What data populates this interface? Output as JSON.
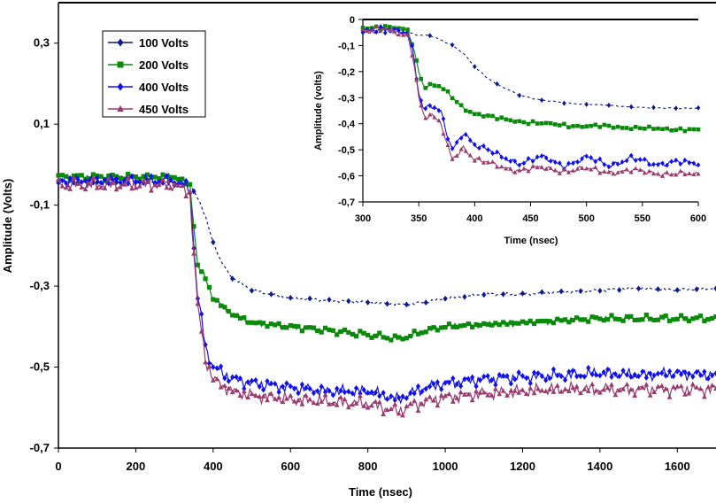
{
  "chart_data": [
    {
      "type": "line",
      "name": "main",
      "title": "",
      "xlabel": "Time (nsec)",
      "ylabel": "Amplitude (Volts)",
      "xlim": [
        0,
        1700
      ],
      "ylim": [
        -0.7,
        0.4
      ],
      "x_ticks": [
        0,
        200,
        400,
        600,
        800,
        1000,
        1200,
        1400,
        1600
      ],
      "x_tick_labels": [
        "0",
        "200",
        "400",
        "600",
        "800",
        "1000",
        "1200",
        "1400",
        "1600"
      ],
      "y_ticks": [
        0.3,
        0.1,
        -0.1,
        -0.3,
        -0.5,
        -0.7
      ],
      "y_tick_labels": [
        "0,3",
        "0,1",
        "-0,1",
        "-0,3",
        "-0,5",
        "-0,7"
      ],
      "legend_position": "top-left",
      "series": [
        {
          "name": "100 Volts",
          "color": "#0b1a8c",
          "marker": "diamond",
          "x": [
            0,
            100,
            200,
            300,
            340,
            360,
            380,
            400,
            420,
            450,
            500,
            600,
            700,
            800,
            880,
            900,
            950,
            1000,
            1100,
            1200,
            1300,
            1400,
            1500,
            1600,
            1700
          ],
          "y": [
            -0.045,
            -0.045,
            -0.045,
            -0.045,
            -0.05,
            -0.08,
            -0.13,
            -0.19,
            -0.24,
            -0.28,
            -0.31,
            -0.33,
            -0.335,
            -0.34,
            -0.345,
            -0.345,
            -0.34,
            -0.33,
            -0.32,
            -0.32,
            -0.315,
            -0.31,
            -0.305,
            -0.31,
            -0.305
          ]
        },
        {
          "name": "200 Volts",
          "color": "#0a8a0a",
          "marker": "square",
          "x": [
            0,
            100,
            200,
            300,
            340,
            350,
            360,
            380,
            400,
            450,
            500,
            600,
            700,
            800,
            880,
            900,
            950,
            1000,
            1100,
            1200,
            1300,
            1400,
            1500,
            1600,
            1700
          ],
          "y": [
            -0.03,
            -0.03,
            -0.03,
            -0.03,
            -0.05,
            -0.15,
            -0.25,
            -0.28,
            -0.33,
            -0.37,
            -0.39,
            -0.4,
            -0.41,
            -0.42,
            -0.43,
            -0.425,
            -0.41,
            -0.4,
            -0.395,
            -0.39,
            -0.385,
            -0.38,
            -0.38,
            -0.38,
            -0.38
          ]
        },
        {
          "name": "400 Volts",
          "color": "#1010ee",
          "marker": "diamond",
          "x": [
            0,
            100,
            200,
            300,
            340,
            350,
            360,
            370,
            380,
            400,
            450,
            500,
            600,
            700,
            800,
            880,
            900,
            950,
            1000,
            1100,
            1200,
            1300,
            1400,
            1500,
            1600,
            1700
          ],
          "y": [
            -0.04,
            -0.04,
            -0.04,
            -0.04,
            -0.06,
            -0.2,
            -0.33,
            -0.38,
            -0.45,
            -0.5,
            -0.53,
            -0.54,
            -0.55,
            -0.56,
            -0.56,
            -0.58,
            -0.57,
            -0.55,
            -0.54,
            -0.53,
            -0.525,
            -0.52,
            -0.515,
            -0.52,
            -0.515,
            -0.52
          ]
        },
        {
          "name": "450 Volts",
          "color": "#9a3a6e",
          "marker": "triangle",
          "x": [
            0,
            100,
            200,
            300,
            340,
            350,
            360,
            370,
            380,
            400,
            450,
            500,
            600,
            700,
            800,
            880,
            900,
            950,
            1000,
            1100,
            1200,
            1300,
            1400,
            1500,
            1600,
            1700
          ],
          "y": [
            -0.05,
            -0.05,
            -0.05,
            -0.05,
            -0.07,
            -0.22,
            -0.35,
            -0.41,
            -0.48,
            -0.53,
            -0.56,
            -0.57,
            -0.58,
            -0.585,
            -0.59,
            -0.61,
            -0.6,
            -0.585,
            -0.575,
            -0.565,
            -0.56,
            -0.555,
            -0.555,
            -0.555,
            -0.555,
            -0.555
          ]
        }
      ]
    },
    {
      "type": "line",
      "name": "inset",
      "title": "",
      "xlabel": "Time (nsec)",
      "ylabel": "Amplitude (volts)",
      "xlim": [
        300,
        600
      ],
      "ylim": [
        -0.7,
        0
      ],
      "x_ticks": [
        300,
        350,
        400,
        450,
        500,
        550,
        600
      ],
      "x_tick_labels": [
        "300",
        "350",
        "400",
        "450",
        "500",
        "550",
        "600"
      ],
      "y_ticks": [
        0,
        -0.1,
        -0.2,
        -0.3,
        -0.4,
        -0.5,
        -0.6,
        -0.7
      ],
      "y_tick_labels": [
        "0",
        "-0,1",
        "-0,2",
        "-0,3",
        "-0,4",
        "-0,5",
        "-0,6",
        "-0,7"
      ],
      "series": [
        {
          "name": "100 Volts",
          "color": "#0b1a8c",
          "marker": "diamond",
          "x": [
            300,
            320,
            340,
            350,
            360,
            370,
            380,
            390,
            400,
            410,
            420,
            430,
            440,
            450,
            460,
            480,
            500,
            520,
            540,
            560,
            580,
            600
          ],
          "y": [
            -0.05,
            -0.05,
            -0.05,
            -0.06,
            -0.06,
            -0.08,
            -0.1,
            -0.13,
            -0.18,
            -0.22,
            -0.25,
            -0.27,
            -0.29,
            -0.3,
            -0.31,
            -0.32,
            -0.325,
            -0.33,
            -0.335,
            -0.34,
            -0.34,
            -0.34
          ]
        },
        {
          "name": "200 Volts",
          "color": "#0a8a0a",
          "marker": "square",
          "x": [
            300,
            320,
            340,
            345,
            350,
            355,
            360,
            370,
            380,
            390,
            400,
            420,
            440,
            460,
            480,
            500,
            520,
            540,
            560,
            580,
            600
          ],
          "y": [
            -0.03,
            -0.03,
            -0.04,
            -0.1,
            -0.2,
            -0.26,
            -0.25,
            -0.26,
            -0.3,
            -0.34,
            -0.36,
            -0.38,
            -0.39,
            -0.4,
            -0.405,
            -0.41,
            -0.41,
            -0.415,
            -0.42,
            -0.42,
            -0.425
          ]
        },
        {
          "name": "400 Volts",
          "color": "#1010ee",
          "marker": "diamond",
          "x": [
            300,
            320,
            340,
            345,
            350,
            355,
            360,
            370,
            375,
            380,
            390,
            400,
            420,
            440,
            460,
            480,
            500,
            520,
            540,
            560,
            580,
            600
          ],
          "y": [
            -0.04,
            -0.04,
            -0.05,
            -0.12,
            -0.28,
            -0.35,
            -0.33,
            -0.36,
            -0.44,
            -0.5,
            -0.43,
            -0.48,
            -0.52,
            -0.55,
            -0.53,
            -0.56,
            -0.53,
            -0.56,
            -0.53,
            -0.56,
            -0.54,
            -0.56
          ]
        },
        {
          "name": "450 Volts",
          "color": "#9a3a6e",
          "marker": "triangle",
          "x": [
            300,
            320,
            340,
            345,
            350,
            355,
            360,
            370,
            375,
            380,
            390,
            400,
            420,
            440,
            460,
            480,
            500,
            520,
            540,
            560,
            580,
            600
          ],
          "y": [
            -0.04,
            -0.04,
            -0.06,
            -0.14,
            -0.3,
            -0.38,
            -0.37,
            -0.4,
            -0.48,
            -0.53,
            -0.49,
            -0.54,
            -0.56,
            -0.58,
            -0.57,
            -0.58,
            -0.575,
            -0.585,
            -0.58,
            -0.59,
            -0.59,
            -0.6
          ]
        }
      ]
    }
  ]
}
